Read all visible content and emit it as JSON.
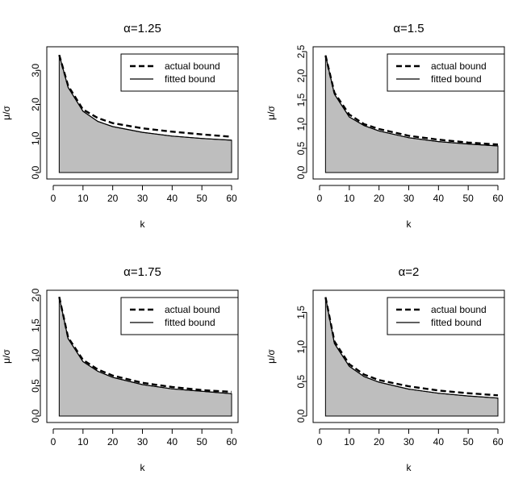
{
  "chart_data": [
    {
      "type": "area",
      "title": "α=1.25",
      "xlabel": "k",
      "ylabel": "μ/σ",
      "xlim": [
        0,
        60
      ],
      "ylim": [
        0,
        3.5
      ],
      "xticks": [
        0,
        10,
        20,
        30,
        40,
        50,
        60
      ],
      "xtick_labels": [
        "0",
        "10",
        "20",
        "30",
        "40",
        "50",
        "60"
      ],
      "yticks": [
        0,
        1,
        2,
        3
      ],
      "ytick_labels": [
        "0.0",
        "1.0",
        "2.0",
        "3.0"
      ],
      "legend": {
        "position": "top-right",
        "entries": [
          "actual bound",
          "fitted bound"
        ]
      },
      "series": [
        {
          "name": "actual bound",
          "style": "dashed",
          "x": [
            2,
            5,
            10,
            15,
            20,
            30,
            40,
            50,
            60
          ],
          "values": [
            3.45,
            2.55,
            1.85,
            1.6,
            1.45,
            1.3,
            1.2,
            1.12,
            1.05
          ]
        },
        {
          "name": "fitted bound",
          "style": "solid",
          "x": [
            2,
            5,
            10,
            15,
            20,
            30,
            40,
            50,
            60
          ],
          "values": [
            3.45,
            2.5,
            1.8,
            1.5,
            1.35,
            1.18,
            1.07,
            1.0,
            0.95
          ]
        }
      ],
      "fill_color": "#bebebe"
    },
    {
      "type": "area",
      "title": "α=1.5",
      "xlabel": "k",
      "ylabel": "μ/σ",
      "xlim": [
        0,
        60
      ],
      "ylim": [
        0,
        2.5
      ],
      "xticks": [
        0,
        10,
        20,
        30,
        40,
        50,
        60
      ],
      "xtick_labels": [
        "0",
        "10",
        "20",
        "30",
        "40",
        "50",
        "60"
      ],
      "yticks": [
        0,
        0.5,
        1,
        1.5,
        2,
        2.5
      ],
      "ytick_labels": [
        "0.0",
        "0.5",
        "1.0",
        "1.5",
        "2.0",
        "2.5"
      ],
      "legend": {
        "position": "top-right",
        "entries": [
          "actual bound",
          "fitted bound"
        ]
      },
      "series": [
        {
          "name": "actual bound",
          "style": "dashed",
          "x": [
            2,
            5,
            10,
            15,
            20,
            30,
            40,
            50,
            60
          ],
          "values": [
            2.42,
            1.65,
            1.2,
            1.0,
            0.9,
            0.76,
            0.68,
            0.62,
            0.58
          ]
        },
        {
          "name": "fitted bound",
          "style": "solid",
          "x": [
            2,
            5,
            10,
            15,
            20,
            30,
            40,
            50,
            60
          ],
          "values": [
            2.42,
            1.62,
            1.15,
            0.97,
            0.86,
            0.72,
            0.64,
            0.59,
            0.55
          ]
        }
      ],
      "fill_color": "#bebebe"
    },
    {
      "type": "area",
      "title": "α=1.75",
      "xlabel": "k",
      "ylabel": "μ/σ",
      "xlim": [
        0,
        60
      ],
      "ylim": [
        0,
        2.0
      ],
      "xticks": [
        0,
        10,
        20,
        30,
        40,
        50,
        60
      ],
      "xtick_labels": [
        "0",
        "10",
        "20",
        "30",
        "40",
        "50",
        "60"
      ],
      "yticks": [
        0,
        0.5,
        1,
        1.5,
        2
      ],
      "ytick_labels": [
        "0.0",
        "0.5",
        "1.0",
        "1.5",
        "2.0"
      ],
      "legend": {
        "position": "top-right",
        "entries": [
          "actual bound",
          "fitted bound"
        ]
      },
      "series": [
        {
          "name": "actual bound",
          "style": "dashed",
          "x": [
            2,
            5,
            10,
            15,
            20,
            30,
            40,
            50,
            60
          ],
          "values": [
            1.97,
            1.3,
            0.93,
            0.77,
            0.67,
            0.55,
            0.48,
            0.43,
            0.4
          ]
        },
        {
          "name": "fitted bound",
          "style": "solid",
          "x": [
            2,
            5,
            10,
            15,
            20,
            30,
            40,
            50,
            60
          ],
          "values": [
            1.97,
            1.28,
            0.9,
            0.74,
            0.64,
            0.52,
            0.45,
            0.41,
            0.37
          ]
        }
      ],
      "fill_color": "#bebebe"
    },
    {
      "type": "area",
      "title": "α=2",
      "xlabel": "k",
      "ylabel": "μ/σ",
      "xlim": [
        0,
        60
      ],
      "ylim": [
        0,
        1.75
      ],
      "xticks": [
        0,
        10,
        20,
        30,
        40,
        50,
        60
      ],
      "xtick_labels": [
        "0",
        "10",
        "20",
        "30",
        "40",
        "50",
        "60"
      ],
      "yticks": [
        0,
        0.5,
        1,
        1.5
      ],
      "ytick_labels": [
        "0.0",
        "0.5",
        "1.0",
        "1.5"
      ],
      "legend": {
        "position": "top-right",
        "entries": [
          "actual bound",
          "fitted bound"
        ]
      },
      "series": [
        {
          "name": "actual bound",
          "style": "dashed",
          "x": [
            2,
            5,
            10,
            15,
            20,
            30,
            40,
            50,
            60
          ],
          "values": [
            1.72,
            1.08,
            0.75,
            0.6,
            0.52,
            0.43,
            0.37,
            0.33,
            0.3
          ]
        },
        {
          "name": "fitted bound",
          "style": "solid",
          "x": [
            2,
            5,
            10,
            15,
            20,
            30,
            40,
            50,
            60
          ],
          "values": [
            1.72,
            1.05,
            0.72,
            0.57,
            0.49,
            0.39,
            0.33,
            0.29,
            0.26
          ]
        }
      ],
      "fill_color": "#bebebe"
    }
  ]
}
